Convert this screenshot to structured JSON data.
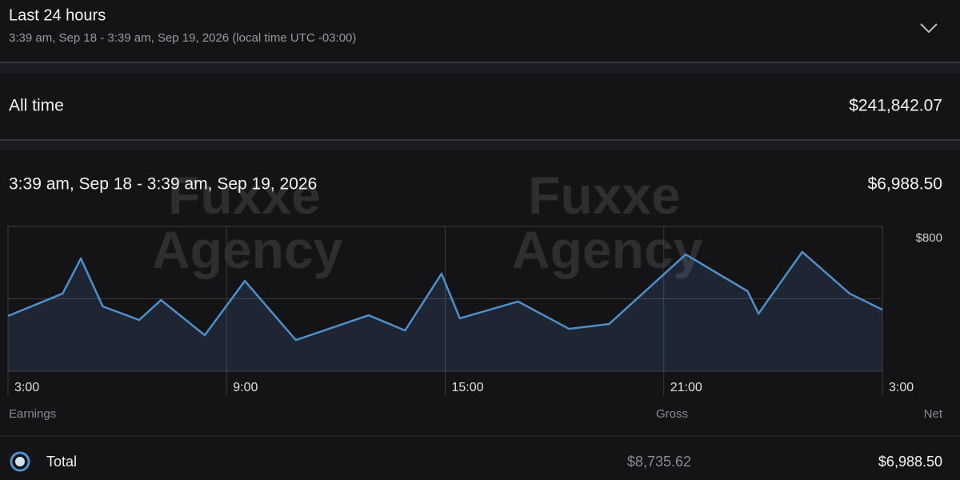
{
  "header": {
    "title": "Last 24 hours",
    "subtitle": "3:39 am, Sep 18 - 3:39 am, Sep 19, 2026 (local time UTC -03:00)"
  },
  "all_time": {
    "label": "All time",
    "amount": "$241,842.07"
  },
  "period": {
    "label": "3:39 am, Sep 18 - 3:39 am, Sep 19, 2026",
    "amount": "$6,988.50"
  },
  "watermarks": [
    "Fuxxe Agency",
    "Fuxxe Agency"
  ],
  "chart_data": {
    "type": "area",
    "x": [
      0,
      1.5,
      2,
      2.6,
      3.6,
      4.2,
      5.4,
      6.5,
      7.9,
      9.9,
      10.9,
      11.9,
      12.4,
      14.0,
      15.4,
      16.5,
      18.6,
      20.3,
      20.6,
      21.8,
      23.1,
      24
    ],
    "series": [
      {
        "color": "#4f8fca",
        "values": [
          305,
          429,
          623,
          358,
          283,
          393,
          199,
          499,
          172,
          309,
          225,
          539,
          292,
          385,
          234,
          261,
          645,
          442,
          318,
          659,
          429,
          340
        ]
      }
    ],
    "xlim": [
      0,
      24
    ],
    "xticks": [
      {
        "value": 0,
        "label": "3:00"
      },
      {
        "value": 6,
        "label": "9:00"
      },
      {
        "value": 12,
        "label": "15:00"
      },
      {
        "value": 18,
        "label": "21:00"
      },
      {
        "value": 24,
        "label": "3:00"
      }
    ],
    "ylim": [
      0,
      800
    ],
    "yticks": [
      {
        "value": 400,
        "label": null
      },
      {
        "value": 800,
        "label": "$800"
      }
    ],
    "grid": true
  },
  "table": {
    "headers": [
      "Earnings",
      "Gross",
      "Net"
    ],
    "rows": [
      [
        "Total",
        "$8,735.62",
        "$6,988.50"
      ]
    ]
  }
}
